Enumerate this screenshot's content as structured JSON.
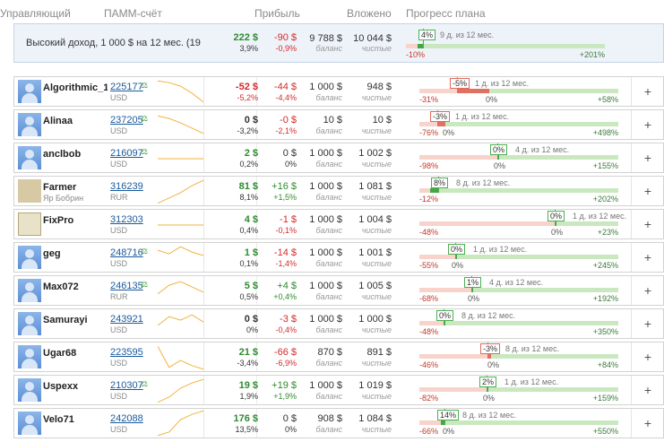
{
  "header": {
    "manager": "Управляющий",
    "account": "ПАММ-счёт",
    "profit": "Прибыль",
    "invested": "Вложено",
    "progress": "Прогресс плана"
  },
  "featured": {
    "name": "Высокий доход, 1 000 $ на 12 мес. (19",
    "profit": "222 $",
    "profit_pct": "3,9%",
    "daily": "-90 $",
    "daily_pct": "-0,9%",
    "balance": "9 788 $",
    "balance_label": "баланс",
    "net": "10 044 $",
    "net_label": "чистые",
    "plan_badge": "4%",
    "plan_note": "9 д. из 12 мес.",
    "plan_lo": "-10%",
    "plan_hi": "+201%",
    "plan_fraction": 0.06
  },
  "rows": [
    {
      "name": "Algorithmic_1",
      "sub": "",
      "account": "225177",
      "flask": true,
      "currency": "USD",
      "avatar": "default",
      "profit": "-52 $",
      "profit_pct": "-5,2%",
      "profit_sign": "neg",
      "daily": "-44 $",
      "daily_pct": "-4,4%",
      "daily_sign": "neg",
      "balance": "1 000 $",
      "balance_label": "баланс",
      "net": "948 $",
      "net_label": "чистые",
      "plan_badge": "-5%",
      "plan_badge_sign": "r",
      "plan_note": "1 д. из 12 мес.",
      "plan_lo": "-31%",
      "plan_zero": "0%",
      "plan_hi": "+58%",
      "plan_fraction": -0.16,
      "plan_zero_at": 0.35,
      "spark": [
        4,
        6,
        10,
        18,
        28
      ]
    },
    {
      "name": "Alinaa",
      "sub": "",
      "account": "237205",
      "flask": true,
      "currency": "USD",
      "avatar": "default",
      "profit": "0 $",
      "profit_pct": "-3,2%",
      "profit_sign": "neu",
      "daily": "-0 $",
      "daily_pct": "-2,1%",
      "daily_sign": "neg",
      "balance": "10 $",
      "balance_label": "баланс",
      "net": "10 $",
      "net_label": "чистые",
      "plan_badge": "-3%",
      "plan_badge_sign": "r",
      "plan_note": "1 д. из 12 мес.",
      "plan_lo": "-76%",
      "plan_zero": "0%",
      "plan_hi": "+498%",
      "plan_fraction": -0.04,
      "plan_zero_at": 0.13,
      "spark": [
        6,
        9,
        14,
        20,
        26
      ]
    },
    {
      "name": "anclbob",
      "sub": "",
      "account": "216097",
      "flask": true,
      "currency": "USD",
      "avatar": "default",
      "profit": "2 $",
      "profit_pct": "0,2%",
      "profit_sign": "pos",
      "daily": "0 $",
      "daily_pct": "0%",
      "daily_sign": "neu",
      "balance": "1 000 $",
      "balance_label": "баланс",
      "net": "1 002 $",
      "net_label": "чистые",
      "plan_badge": "0%",
      "plan_badge_sign": "g",
      "plan_note": "4 д. из 12 мес.",
      "plan_lo": "-98%",
      "plan_zero": "0%",
      "plan_hi": "+155%",
      "plan_fraction": 0.0,
      "plan_zero_at": 0.39,
      "spark": [
        17,
        17,
        17,
        17,
        17
      ]
    },
    {
      "name": "Farmer",
      "sub": "Яр Бобрин",
      "account": "316239",
      "flask": false,
      "currency": "RUR",
      "avatar": "pic",
      "profit": "81 $",
      "profit_pct": "8,1%",
      "profit_sign": "pos",
      "daily": "+16 $",
      "daily_pct": "+1,5%",
      "daily_sign": "pos",
      "balance": "1 000 $",
      "balance_label": "баланс",
      "net": "1 081 $",
      "net_label": "чистые",
      "plan_badge": "8%",
      "plan_badge_sign": "g",
      "plan_note": "8 д. из 12 мес.",
      "plan_lo": "-12%",
      "plan_zero": "",
      "plan_hi": "+202%",
      "plan_fraction": 0.04,
      "plan_zero_at": 0.055,
      "spark": [
        30,
        24,
        18,
        10,
        4
      ]
    },
    {
      "name": "FixPro",
      "sub": "",
      "account": "312303",
      "flask": false,
      "currency": "USD",
      "avatar": "pic2",
      "profit": "4 $",
      "profit_pct": "0,4%",
      "profit_sign": "pos",
      "daily": "-1 $",
      "daily_pct": "-0,1%",
      "daily_sign": "neg",
      "balance": "1 000 $",
      "balance_label": "баланс",
      "net": "1 004 $",
      "net_label": "чистые",
      "plan_badge": "0%",
      "plan_badge_sign": "g",
      "plan_note": "1 д. из 12 мес.",
      "plan_lo": "-48%",
      "plan_zero": "0%",
      "plan_hi": "+23%",
      "plan_fraction": 0.0,
      "plan_zero_at": 0.68,
      "spark": [
        17,
        17,
        17,
        17,
        17
      ]
    },
    {
      "name": "geg",
      "sub": "",
      "account": "248716",
      "flask": true,
      "currency": "USD",
      "avatar": "default",
      "profit": "1 $",
      "profit_pct": "0,1%",
      "profit_sign": "pos",
      "daily": "-14 $",
      "daily_pct": "-1,4%",
      "daily_sign": "neg",
      "balance": "1 000 $",
      "balance_label": "баланс",
      "net": "1 001 $",
      "net_label": "чистые",
      "plan_badge": "0%",
      "plan_badge_sign": "g",
      "plan_note": "1 д. из 12 мес.",
      "plan_lo": "-55%",
      "plan_zero": "0%",
      "plan_hi": "+245%",
      "plan_fraction": 0.0,
      "plan_zero_at": 0.18,
      "spark": [
        8,
        12,
        4,
        10,
        14
      ]
    },
    {
      "name": "Max072",
      "sub": "",
      "account": "246135",
      "flask": true,
      "currency": "RUR",
      "avatar": "default",
      "profit": "5 $",
      "profit_pct": "0,5%",
      "profit_sign": "pos",
      "daily": "+4 $",
      "daily_pct": "+0,4%",
      "daily_sign": "pos",
      "balance": "1 000 $",
      "balance_label": "баланс",
      "net": "1 005 $",
      "net_label": "чистые",
      "plan_badge": "1%",
      "plan_badge_sign": "g",
      "plan_note": "4 д. из 12 мес.",
      "plan_lo": "-68%",
      "plan_zero": "0%",
      "plan_hi": "+192%",
      "plan_fraction": 0.0,
      "plan_zero_at": 0.26,
      "spark": [
        20,
        10,
        6,
        12,
        18
      ]
    },
    {
      "name": "Samurayi",
      "sub": "",
      "account": "243921",
      "flask": false,
      "currency": "USD",
      "avatar": "default",
      "profit": "0 $",
      "profit_pct": "0%",
      "profit_sign": "neu",
      "daily": "-3 $",
      "daily_pct": "-0,4%",
      "daily_sign": "neg",
      "balance": "1 000 $",
      "balance_label": "баланс",
      "net": "1 000 $",
      "net_label": "чистые",
      "plan_badge": "0%",
      "plan_badge_sign": "g",
      "plan_note": "8 д. из 12 мес.",
      "plan_lo": "-48%",
      "plan_zero": "",
      "plan_hi": "+350%",
      "plan_fraction": 0.0,
      "plan_zero_at": 0.12,
      "spark": [
        18,
        8,
        12,
        6,
        14
      ]
    },
    {
      "name": "Ugar68",
      "sub": "",
      "account": "223595",
      "flask": false,
      "currency": "USD",
      "avatar": "default",
      "profit": "21 $",
      "profit_pct": "-3,4%",
      "profit_sign": "pos",
      "daily": "-66 $",
      "daily_pct": "-6,9%",
      "daily_sign": "neg",
      "balance": "870 $",
      "balance_label": "баланс",
      "net": "891 $",
      "net_label": "чистые",
      "plan_badge": "-3%",
      "plan_badge_sign": "r",
      "plan_note": "8 д. из 12 мес.",
      "plan_lo": "-46%",
      "plan_zero": "0%",
      "plan_hi": "+84%",
      "plan_fraction": -0.02,
      "plan_zero_at": 0.36,
      "spark": [
        4,
        28,
        20,
        26,
        30
      ]
    },
    {
      "name": "Uspexx",
      "sub": "",
      "account": "210307",
      "flask": true,
      "currency": "USD",
      "avatar": "default",
      "profit": "19 $",
      "profit_pct": "1,9%",
      "profit_sign": "pos",
      "daily": "+19 $",
      "daily_pct": "+1,9%",
      "daily_sign": "pos",
      "balance": "1 000 $",
      "balance_label": "баланс",
      "net": "1 019 $",
      "net_label": "чистые",
      "plan_badge": "2%",
      "plan_badge_sign": "g",
      "plan_note": "1 д. из 12 мес.",
      "plan_lo": "-82%",
      "plan_zero": "0%",
      "plan_hi": "+159%",
      "plan_fraction": 0.0,
      "plan_zero_at": 0.34,
      "spark": [
        30,
        24,
        14,
        8,
        4
      ]
    },
    {
      "name": "Velo71",
      "sub": "",
      "account": "242088",
      "flask": false,
      "currency": "USD",
      "avatar": "default",
      "profit": "176 $",
      "profit_pct": "13,5%",
      "profit_sign": "pos",
      "daily": "0 $",
      "daily_pct": "0%",
      "daily_sign": "neu",
      "balance": "908 $",
      "balance_label": "баланс",
      "net": "1 084 $",
      "net_label": "чистые",
      "plan_badge": "14%",
      "plan_badge_sign": "g",
      "plan_note": "8 д. из 12 мес.",
      "plan_lo": "-66%",
      "plan_zero": "0%",
      "plan_hi": "+550%",
      "plan_fraction": 0.02,
      "plan_zero_at": 0.11,
      "spark": [
        30,
        26,
        12,
        6,
        2
      ]
    }
  ],
  "row_action": "+",
  "colors": {
    "positive": "#2e8b2e",
    "negative": "#d32b2b",
    "plan_track": "#c9e8c0",
    "plan_neg_track": "#f7d3cb",
    "link": "#1a5a9c"
  }
}
